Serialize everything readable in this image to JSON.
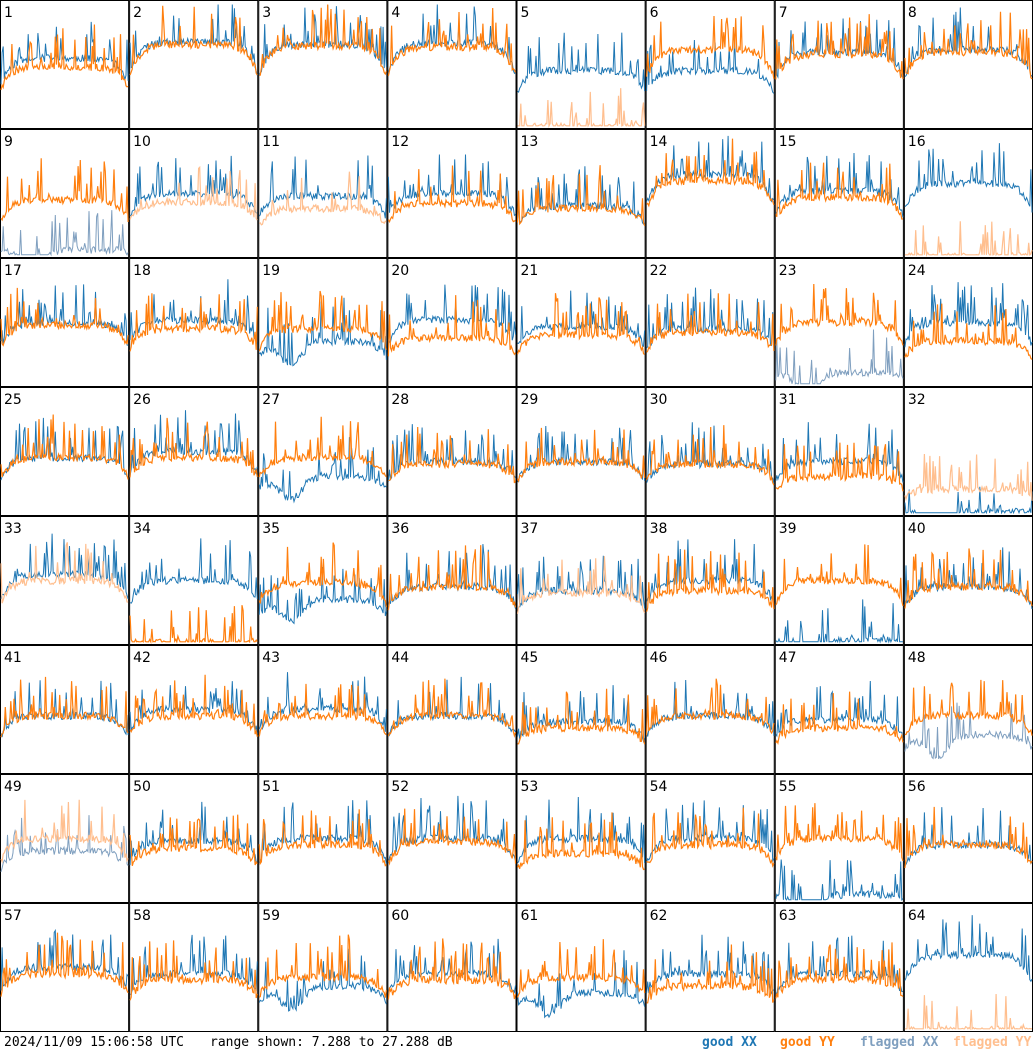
{
  "timestamp": "2024/11/09 15:06:58 UTC",
  "range_text": "range shown: 7.288 to 27.288 dB",
  "legend": {
    "good_xx": "good XX",
    "good_yy": "good YY",
    "flagged_xx": "flagged XX",
    "flagged_yy": "flagged YY"
  },
  "colors": {
    "good_xx": "#1f77b4",
    "good_yy": "#ff7f0e",
    "flagged_xx": "#7f9fbf",
    "flagged_yy": "#ffbf8f",
    "frame": "#000000"
  },
  "chart_data": {
    "type": "line",
    "layout_grid": "8x8 small multiples",
    "ylim_db": [
      7.288,
      27.288
    ],
    "series_kinds": [
      "good XX",
      "good YY",
      "flagged XX",
      "flagged YY"
    ],
    "panels": [
      {
        "id": "1",
        "xx": "good",
        "yy": "good",
        "xx_level": 0.55,
        "yy_level": 0.48
      },
      {
        "id": "2",
        "xx": "good",
        "yy": "good",
        "xx_level": 0.68,
        "yy_level": 0.66
      },
      {
        "id": "3",
        "xx": "good",
        "yy": "good",
        "xx_level": 0.66,
        "yy_level": 0.65
      },
      {
        "id": "4",
        "xx": "good",
        "yy": "good",
        "xx_level": 0.67,
        "yy_level": 0.64
      },
      {
        "id": "5",
        "xx": "good",
        "yy": "flagged",
        "xx_level": 0.45,
        "yy_level": 0.0
      },
      {
        "id": "6",
        "xx": "good",
        "yy": "good",
        "xx_level": 0.45,
        "yy_level": 0.62
      },
      {
        "id": "7",
        "xx": "good",
        "yy": "good",
        "xx_level": 0.6,
        "yy_level": 0.58
      },
      {
        "id": "8",
        "xx": "good",
        "yy": "good",
        "xx_level": 0.62,
        "yy_level": 0.6
      },
      {
        "id": "9",
        "xx": "flagged",
        "yy": "good",
        "xx_level": 0.05,
        "yy_level": 0.45
      },
      {
        "id": "10",
        "xx": "good",
        "yy": "flagged",
        "xx_level": 0.5,
        "yy_level": 0.43
      },
      {
        "id": "11",
        "xx": "good",
        "yy": "flagged",
        "xx_level": 0.48,
        "yy_level": 0.38
      },
      {
        "id": "12",
        "xx": "good",
        "yy": "good",
        "xx_level": 0.5,
        "yy_level": 0.42
      },
      {
        "id": "13",
        "xx": "good",
        "yy": "good",
        "xx_level": 0.4,
        "yy_level": 0.38
      },
      {
        "id": "14",
        "xx": "good",
        "yy": "good",
        "xx_level": 0.65,
        "yy_level": 0.6
      },
      {
        "id": "15",
        "xx": "good",
        "yy": "good",
        "xx_level": 0.52,
        "yy_level": 0.47
      },
      {
        "id": "16",
        "xx": "good",
        "yy": "flagged",
        "xx_level": 0.58,
        "yy_level": 0.0
      },
      {
        "id": "17",
        "xx": "good",
        "yy": "good",
        "xx_level": 0.5,
        "yy_level": 0.48
      },
      {
        "id": "18",
        "xx": "good",
        "yy": "good",
        "xx_level": 0.52,
        "yy_level": 0.45
      },
      {
        "id": "19",
        "xx": "good",
        "yy": "good",
        "xx_level": 0.35,
        "yy_level": 0.45
      },
      {
        "id": "20",
        "xx": "good",
        "yy": "good",
        "xx_level": 0.52,
        "yy_level": 0.38
      },
      {
        "id": "21",
        "xx": "good",
        "yy": "good",
        "xx_level": 0.47,
        "yy_level": 0.4
      },
      {
        "id": "22",
        "xx": "good",
        "yy": "good",
        "xx_level": 0.45,
        "yy_level": 0.42
      },
      {
        "id": "23",
        "xx": "flagged",
        "yy": "good",
        "xx_level": 0.1,
        "yy_level": 0.5
      },
      {
        "id": "24",
        "xx": "good",
        "yy": "good",
        "xx_level": 0.5,
        "yy_level": 0.35
      },
      {
        "id": "25",
        "xx": "good",
        "yy": "good",
        "xx_level": 0.45,
        "yy_level": 0.45
      },
      {
        "id": "26",
        "xx": "good",
        "yy": "good",
        "xx_level": 0.5,
        "yy_level": 0.45
      },
      {
        "id": "27",
        "xx": "good",
        "yy": "good",
        "xx_level": 0.3,
        "yy_level": 0.45
      },
      {
        "id": "28",
        "xx": "good",
        "yy": "good",
        "xx_level": 0.42,
        "yy_level": 0.4
      },
      {
        "id": "29",
        "xx": "good",
        "yy": "good",
        "xx_level": 0.42,
        "yy_level": 0.42
      },
      {
        "id": "30",
        "xx": "good",
        "yy": "good",
        "xx_level": 0.4,
        "yy_level": 0.4
      },
      {
        "id": "31",
        "xx": "good",
        "yy": "good",
        "xx_level": 0.42,
        "yy_level": 0.3
      },
      {
        "id": "32",
        "xx": "good",
        "yy": "flagged",
        "xx_level": 0.02,
        "yy_level": 0.2
      },
      {
        "id": "33",
        "xx": "good",
        "yy": "flagged",
        "xx_level": 0.55,
        "yy_level": 0.5
      },
      {
        "id": "34",
        "xx": "good",
        "yy": "good",
        "xx_level": 0.5,
        "yy_level": 0.0
      },
      {
        "id": "35",
        "xx": "good",
        "yy": "good",
        "xx_level": 0.35,
        "yy_level": 0.48
      },
      {
        "id": "36",
        "xx": "good",
        "yy": "good",
        "xx_level": 0.45,
        "yy_level": 0.45
      },
      {
        "id": "37",
        "xx": "good",
        "yy": "flagged",
        "xx_level": 0.42,
        "yy_level": 0.4
      },
      {
        "id": "38",
        "xx": "good",
        "yy": "good",
        "xx_level": 0.5,
        "yy_level": 0.42
      },
      {
        "id": "39",
        "xx": "good",
        "yy": "good",
        "xx_level": 0.02,
        "yy_level": 0.5
      },
      {
        "id": "40",
        "xx": "good",
        "yy": "good",
        "xx_level": 0.45,
        "yy_level": 0.45
      },
      {
        "id": "41",
        "xx": "good",
        "yy": "good",
        "xx_level": 0.45,
        "yy_level": 0.45
      },
      {
        "id": "42",
        "xx": "good",
        "yy": "good",
        "xx_level": 0.5,
        "yy_level": 0.45
      },
      {
        "id": "43",
        "xx": "good",
        "yy": "good",
        "xx_level": 0.5,
        "yy_level": 0.45
      },
      {
        "id": "44",
        "xx": "good",
        "yy": "good",
        "xx_level": 0.45,
        "yy_level": 0.45
      },
      {
        "id": "45",
        "xx": "good",
        "yy": "good",
        "xx_level": 0.4,
        "yy_level": 0.35
      },
      {
        "id": "46",
        "xx": "good",
        "yy": "good",
        "xx_level": 0.45,
        "yy_level": 0.45
      },
      {
        "id": "47",
        "xx": "good",
        "yy": "good",
        "xx_level": 0.42,
        "yy_level": 0.35
      },
      {
        "id": "48",
        "xx": "flagged",
        "yy": "good",
        "xx_level": 0.3,
        "yy_level": 0.45
      },
      {
        "id": "49",
        "xx": "flagged",
        "yy": "flagged",
        "xx_level": 0.4,
        "yy_level": 0.5
      },
      {
        "id": "50",
        "xx": "good",
        "yy": "good",
        "xx_level": 0.48,
        "yy_level": 0.42
      },
      {
        "id": "51",
        "xx": "good",
        "yy": "good",
        "xx_level": 0.5,
        "yy_level": 0.45
      },
      {
        "id": "52",
        "xx": "good",
        "yy": "good",
        "xx_level": 0.5,
        "yy_level": 0.47
      },
      {
        "id": "53",
        "xx": "good",
        "yy": "good",
        "xx_level": 0.5,
        "yy_level": 0.38
      },
      {
        "id": "54",
        "xx": "good",
        "yy": "good",
        "xx_level": 0.5,
        "yy_level": 0.45
      },
      {
        "id": "55",
        "xx": "good",
        "yy": "good",
        "xx_level": 0.05,
        "yy_level": 0.5
      },
      {
        "id": "56",
        "xx": "good",
        "yy": "good",
        "xx_level": 0.45,
        "yy_level": 0.45
      },
      {
        "id": "57",
        "xx": "good",
        "yy": "good",
        "xx_level": 0.5,
        "yy_level": 0.45
      },
      {
        "id": "58",
        "xx": "good",
        "yy": "good",
        "xx_level": 0.45,
        "yy_level": 0.4
      },
      {
        "id": "59",
        "xx": "good",
        "yy": "good",
        "xx_level": 0.35,
        "yy_level": 0.42
      },
      {
        "id": "60",
        "xx": "good",
        "yy": "good",
        "xx_level": 0.45,
        "yy_level": 0.4
      },
      {
        "id": "61",
        "xx": "good",
        "yy": "good",
        "xx_level": 0.3,
        "yy_level": 0.42
      },
      {
        "id": "62",
        "xx": "good",
        "yy": "good",
        "xx_level": 0.45,
        "yy_level": 0.35
      },
      {
        "id": "63",
        "xx": "good",
        "yy": "good",
        "xx_level": 0.45,
        "yy_level": 0.4
      },
      {
        "id": "64",
        "xx": "good",
        "yy": "flagged",
        "xx_level": 0.6,
        "yy_level": 0.0
      }
    ]
  }
}
